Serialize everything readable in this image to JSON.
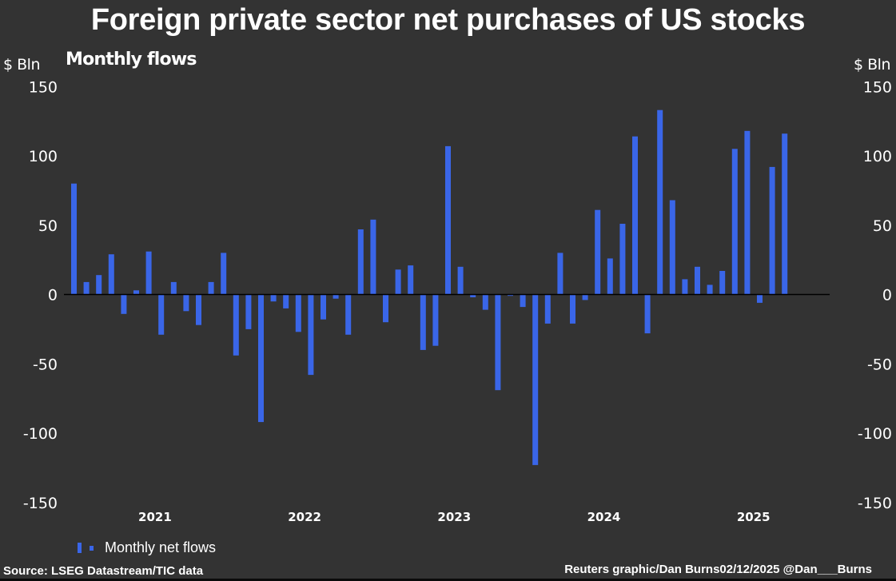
{
  "title": "Foreign private sector net purchases of US stocks",
  "subtitle": "Monthly flows",
  "unit_left": "$ Bln",
  "unit_right": "$ Bln",
  "legend": {
    "label": "Monthly net flows"
  },
  "source": "Source: LSEG Datastream/TIC data",
  "credit": "Reuters graphic/Dan Burns02/12/2025 @Dan___Burns",
  "colors": {
    "bar": "#3a66e8",
    "background": "#333333",
    "zero_line": "#000000",
    "text": "#ffffff"
  },
  "chart_data": {
    "type": "bar",
    "title": "Foreign private sector net purchases of US stocks",
    "subtitle": "Monthly flows",
    "xlabel": "",
    "ylabel": "$ Bln",
    "ylim": [
      -150,
      150
    ],
    "yticks": [
      150,
      100,
      50,
      0,
      -50,
      -100,
      -150
    ],
    "year_labels": [
      "2021",
      "2022",
      "2023",
      "2024",
      "2025"
    ],
    "legend": [
      "Monthly net flows"
    ],
    "legend_position": "bottom-left",
    "grid": false,
    "categories": [
      "2020-12",
      "2021-01",
      "2021-02",
      "2021-03",
      "2021-04",
      "2021-05",
      "2021-06",
      "2021-07",
      "2021-08",
      "2021-09",
      "2021-10",
      "2021-11",
      "2021-12",
      "2022-01",
      "2022-02",
      "2022-03",
      "2022-04",
      "2022-05",
      "2022-06",
      "2022-07",
      "2022-08",
      "2022-09",
      "2022-10",
      "2022-11",
      "2022-12",
      "2023-01",
      "2023-02",
      "2023-03",
      "2023-04",
      "2023-05",
      "2023-06",
      "2023-07",
      "2023-08",
      "2023-09",
      "2023-10",
      "2023-11",
      "2023-12",
      "2024-01",
      "2024-02",
      "2024-03",
      "2024-04",
      "2024-05",
      "2024-06",
      "2024-07",
      "2024-08",
      "2024-09",
      "2024-10",
      "2024-11",
      "2024-12",
      "2025-01",
      "2025-02",
      "2025-03",
      "2025-04",
      "2025-05",
      "2025-06",
      "2025-07",
      "2025-08",
      "2025-09"
    ],
    "series": [
      {
        "name": "Monthly net flows",
        "values": [
          80,
          9,
          14,
          29,
          -14,
          3,
          31,
          -29,
          9,
          -12,
          -22,
          9,
          30,
          -44,
          -25,
          -92,
          -5,
          -10,
          -27,
          -58,
          -18,
          -3,
          -29,
          47,
          54,
          -20,
          18,
          21,
          -40,
          -37,
          107,
          20,
          -2,
          -11,
          -69,
          -1,
          -9,
          -123,
          -21,
          30,
          -21,
          -4,
          61,
          26,
          51,
          114,
          -28,
          133,
          68,
          11,
          20,
          7,
          17,
          105,
          118,
          -6,
          92,
          116
        ]
      }
    ]
  }
}
